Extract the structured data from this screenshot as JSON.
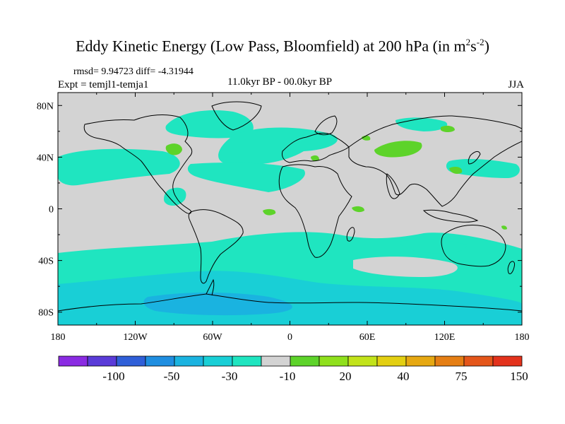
{
  "title": {
    "main": "Eddy Kinetic Energy (Low Pass, Bloomfield) at 200 hPa (in m",
    "sup1": "2",
    "mid": "s",
    "sup2": "-2",
    "end": ")"
  },
  "stats": "rmsd= 9.94723 diff= -4.31944",
  "expt": "Expt = temjl1-temja1",
  "period": "11.0kyr BP - 00.0kyr BP",
  "season": "JJA",
  "axes": {
    "x_ticks": [
      {
        "lon": -180,
        "label": "180"
      },
      {
        "lon": -120,
        "label": "120W"
      },
      {
        "lon": -60,
        "label": "60W"
      },
      {
        "lon": 0,
        "label": "0"
      },
      {
        "lon": 60,
        "label": "60E"
      },
      {
        "lon": 120,
        "label": "120E"
      },
      {
        "lon": 180,
        "label": "180"
      }
    ],
    "y_ticks": [
      {
        "lat": 80,
        "label": "80N"
      },
      {
        "lat": 40,
        "label": "40N"
      },
      {
        "lat": 0,
        "label": "0"
      },
      {
        "lat": -40,
        "label": "40S"
      },
      {
        "lat": -80,
        "label": "80S"
      }
    ],
    "lon_range": [
      -180,
      180
    ],
    "lat_range": [
      -90,
      90
    ]
  },
  "colorbar": {
    "colors": [
      "#8a2be2",
      "#5a3bd8",
      "#2f5fd8",
      "#1f8ee0",
      "#1ab3e0",
      "#19cfd6",
      "#1fe5c0",
      "#d3d3d3",
      "#5dd32a",
      "#8fe01c",
      "#c2e31a",
      "#e3cf12",
      "#e6a812",
      "#e57e14",
      "#e4561a",
      "#e3321c"
    ],
    "labels": [
      {
        "after_box": 2,
        "text": "-100"
      },
      {
        "after_box": 4,
        "text": "-50"
      },
      {
        "after_box": 6,
        "text": "-30"
      },
      {
        "after_box": 8,
        "text": "-10"
      },
      {
        "after_box": 10,
        "text": "20"
      },
      {
        "after_box": 12,
        "text": "40"
      },
      {
        "after_box": 14,
        "text": "75"
      },
      {
        "after_box": 16,
        "text": "150"
      }
    ]
  },
  "fill_colors": {
    "background": "#d3d3d3",
    "neg_light": "#1fe5c0",
    "neg_mid": "#19cfd6",
    "neg_strong": "#1ab3e0",
    "pos_light": "#5dd32a"
  }
}
